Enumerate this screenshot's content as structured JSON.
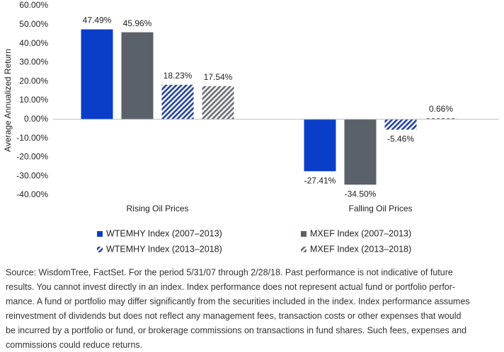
{
  "chart_data": {
    "type": "bar",
    "y_label": "Average Annualized Return",
    "categories": [
      "Rising Oil Prices",
      "Falling Oil Prices"
    ],
    "series": [
      {
        "name": "WTEMHY Index (2007–2013)",
        "color": "#0a3ec8",
        "pattern": "solid",
        "values": [
          47.49,
          -27.41
        ],
        "value_labels": [
          "47.49%",
          "-27.41%"
        ]
      },
      {
        "name": "MXEF Index (2007–2013)",
        "color": "#5b6169",
        "pattern": "solid",
        "values": [
          45.96,
          -34.5
        ],
        "value_labels": [
          "45.96%",
          "-34.50%"
        ]
      },
      {
        "name": "WTEMHY Index (2013–2018)",
        "color": "#23439a",
        "pattern": "hatch",
        "values": [
          18.23,
          -5.46
        ],
        "value_labels": [
          "18.23%",
          "-5.46%"
        ]
      },
      {
        "name": "MXEF Index (2013–2018)",
        "color": "#6a6e74",
        "pattern": "hatch",
        "values": [
          17.54,
          0.66
        ],
        "value_labels": [
          "17.54%",
          "0.66%"
        ]
      }
    ],
    "ylim": [
      -40,
      60
    ],
    "yticks": [
      {
        "value": 60,
        "label": "60.00%"
      },
      {
        "value": 50,
        "label": "50.00%"
      },
      {
        "value": 40,
        "label": "40.00%"
      },
      {
        "value": 30,
        "label": "30.00%"
      },
      {
        "value": 20,
        "label": "20.00%"
      },
      {
        "value": 10,
        "label": "10.00%"
      },
      {
        "value": 0,
        "label": "0.00%"
      },
      {
        "value": -10,
        "label": "-10.00%"
      },
      {
        "value": -20,
        "label": "-20.00%"
      },
      {
        "value": -30,
        "label": "-30.00%"
      },
      {
        "value": -40,
        "label": "-40.00%"
      }
    ],
    "grid": false,
    "source": [
      "Source: WisdomTree, FactSet. For the period 5/31/07 through 2/28/18. Past performance is not indicative of future",
      "results. You cannot invest directly in an index. Index performance does not represent actual fund or portfolio perfor-",
      "mance. A fund or portfolio may differ significantly from the securities included in the index. Index performance assumes",
      "reinvestment of dividends but does not reflect any management fees, transaction costs or other expenses that would",
      "be incurred by a portfolio or fund, or brokerage commissions on transactions in fund shares. Such fees, expenses and",
      "commissions could reduce returns."
    ]
  }
}
